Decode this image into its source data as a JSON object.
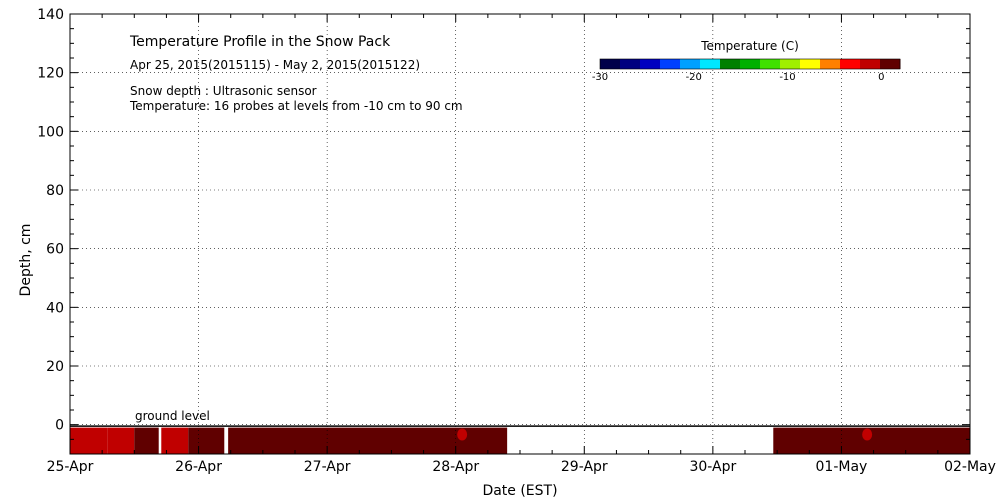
{
  "chart_data": {
    "type": "heatmap",
    "title": "Temperature Profile in the Snow Pack",
    "subtitle": "Apr 25, 2015(2015115) - May  2, 2015(2015122)",
    "notes": [
      "Snow depth : Ultrasonic sensor",
      "Temperature: 16 probes at levels from -10 cm to 90 cm"
    ],
    "xlabel": "Date (EST)",
    "ylabel": "Depth, cm",
    "x_ticks": [
      "25-Apr",
      "26-Apr",
      "27-Apr",
      "28-Apr",
      "29-Apr",
      "30-Apr",
      "01-May",
      "02-May"
    ],
    "xlim": [
      0,
      7
    ],
    "ylim": [
      -10,
      140
    ],
    "y_ticks": [
      0,
      20,
      40,
      60,
      80,
      100,
      120,
      140
    ],
    "grid": true,
    "annotation": "ground level",
    "colorbar": {
      "label": "Temperature (C)",
      "range": [
        -30,
        2
      ],
      "tick_values": [
        -30,
        -20,
        -10,
        0
      ],
      "tick_labels": [
        "-30",
        "-20",
        "-10",
        "0"
      ],
      "colors": [
        "#00004a",
        "#000080",
        "#0000c0",
        "#0040ff",
        "#00a0ff",
        "#00e8ff",
        "#008000",
        "#00b000",
        "#40e000",
        "#a0f000",
        "#ffff00",
        "#ff8000",
        "#ff0000",
        "#c00000",
        "#600000"
      ]
    },
    "series": [
      {
        "x0": 0.0,
        "x1": 0.29,
        "depth_top": -1,
        "depth_bottom": -10,
        "temp": -0.5
      },
      {
        "x0": 0.29,
        "x1": 0.5,
        "depth_top": -1,
        "depth_bottom": -10,
        "temp": -0.3
      },
      {
        "x0": 0.5,
        "x1": 0.69,
        "depth_top": -1,
        "depth_bottom": -10,
        "temp": 0.5
      },
      {
        "x0": 0.71,
        "x1": 0.92,
        "depth_top": -1,
        "depth_bottom": -10,
        "temp": -0.5
      },
      {
        "x0": 0.92,
        "x1": 1.2,
        "depth_top": -1,
        "depth_bottom": -10,
        "temp": 0.8
      },
      {
        "x0": 1.23,
        "x1": 3.4,
        "depth_top": -1,
        "depth_bottom": -10,
        "temp": 1.5
      },
      {
        "x0": 5.47,
        "x1": 7.0,
        "depth_top": -1,
        "depth_bottom": -10,
        "temp": 1.5
      }
    ],
    "warm_spots": [
      {
        "x": 3.05,
        "depth": -2,
        "temp": -1.5
      },
      {
        "x": 6.2,
        "depth": -2,
        "temp": -2
      }
    ],
    "snow_depth_line": [
      {
        "x0": 0.0,
        "x1": 7.0,
        "depth": -0.5
      }
    ]
  }
}
